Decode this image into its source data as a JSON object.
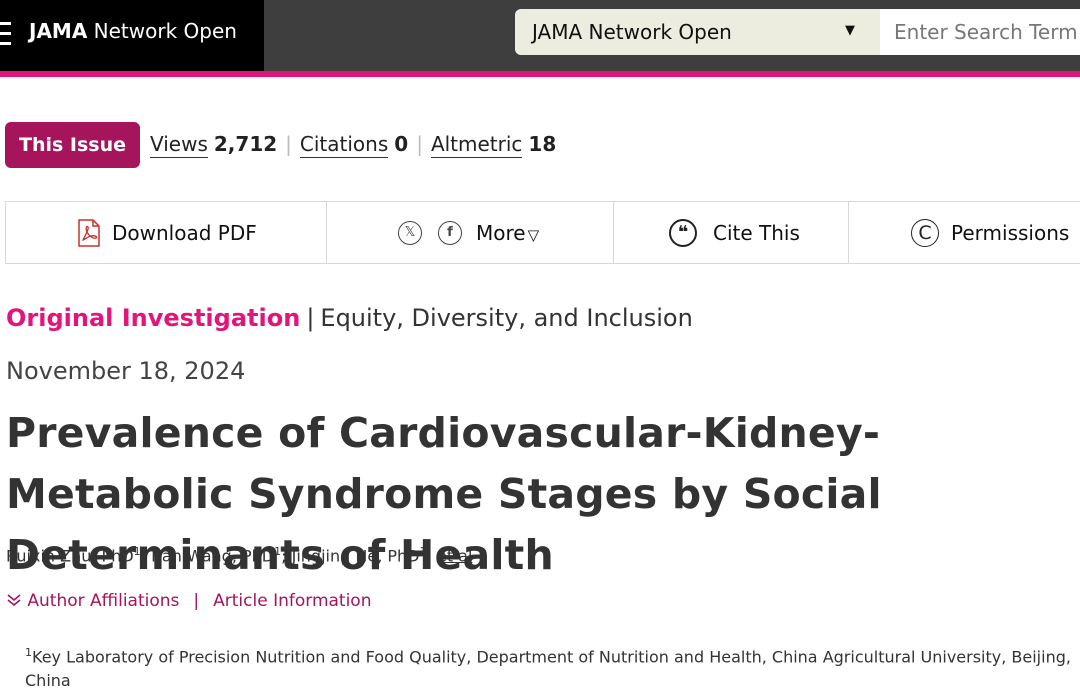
{
  "header": {
    "brand_bold": "JAMA",
    "brand_rest": " Network Open",
    "journal_selected": "JAMA Network Open",
    "search_placeholder": "Enter Search Term"
  },
  "metrics": {
    "this_issue_label": "This Issue",
    "views_label": "Views",
    "views_value": "2,712",
    "citations_label": "Citations",
    "citations_value": "0",
    "altmetric_label": "Altmetric",
    "altmetric_value": "18",
    "separator": "|"
  },
  "toolbar": {
    "download_pdf": "Download PDF",
    "share_x_glyph": "𝕏",
    "share_facebook_glyph": "f",
    "more_label": "More",
    "more_caret": "▽",
    "cite_glyph": "❝",
    "cite_label": "Cite This",
    "permissions_glyph": "C",
    "permissions_label": "Permissions"
  },
  "article": {
    "category": "Original Investigation",
    "category_sep": "|",
    "subcategory": "Equity, Diversity, and Inclusion",
    "date": "November 18, 2024",
    "title": "Prevalence of Cardiovascular-Kidney-Metabolic Syndrome Stages by Social Determinants of Health",
    "authors": [
      {
        "name": "Ruixin Zhu, PhD",
        "sup": "1",
        "after": "; "
      },
      {
        "name": "Ran Wang, PhD",
        "sup": "1",
        "after": "; "
      },
      {
        "name": "Jingjing He, PhD",
        "sup": "1",
        "after": "; "
      }
    ],
    "et_al": "et al",
    "author_affiliations_link": "Author Affiliations",
    "article_information_link": "Article Information",
    "links_sep": "|",
    "affiliation_sup": "1",
    "affiliation_text": "Key Laboratory of Precision Nutrition and Food Quality, Department of Nutrition and Health, China Agricultural University, Beijing, China"
  },
  "colors": {
    "accent_pink": "#e3147b",
    "accent_maroon": "#a6145b",
    "topbar_dark": "#3e3e3e",
    "select_bg": "#ececdf"
  }
}
